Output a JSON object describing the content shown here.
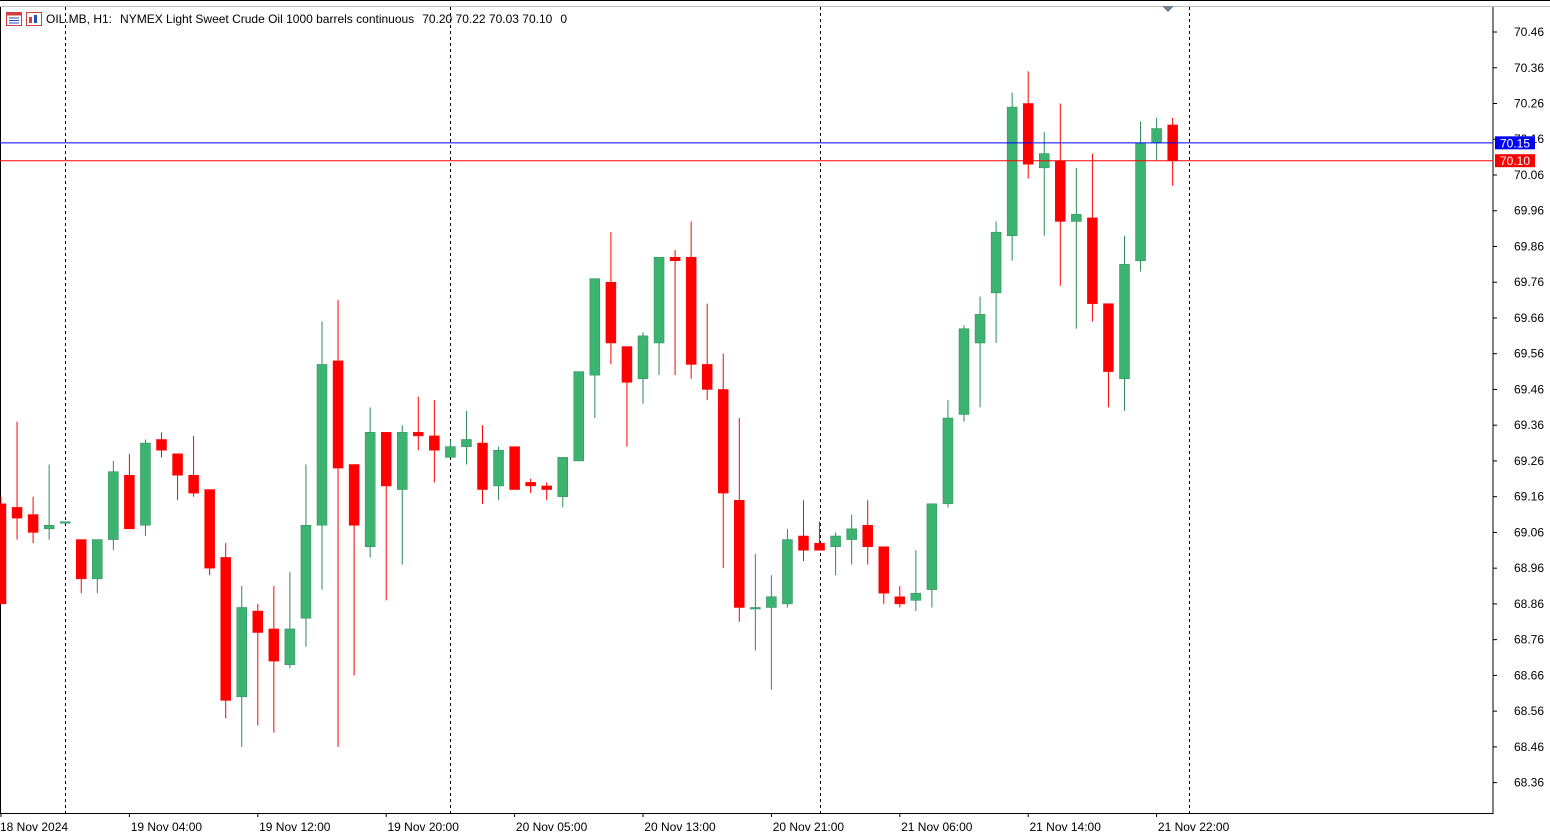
{
  "header": {
    "symbol": "OIL.MB, H1:",
    "description": "NYMEX Light Sweet Crude Oil 1000 barrels continuous",
    "ohlc": "70.20 70.22 70.03 70.10",
    "volume": "0",
    "icons": [
      "chart-list-icon",
      "chart-bars-icon"
    ]
  },
  "colors": {
    "bull": "#3cb371",
    "bear": "#ff0000",
    "ask_line": "#0000ff",
    "bid_line": "#ff0000",
    "grid": "#000000",
    "background": "#ffffff"
  },
  "price_labels": {
    "ask": "70.15",
    "bid": "70.10"
  },
  "chart_data": {
    "type": "candlestick",
    "title": "",
    "xlabel": "",
    "ylabel": "",
    "ylim": [
      68.275,
      70.53
    ],
    "y_ticks": [
      "70.46",
      "70.36",
      "70.26",
      "70.16",
      "70.06",
      "69.96",
      "69.86",
      "69.76",
      "69.66",
      "69.56",
      "69.46",
      "69.36",
      "69.26",
      "69.16",
      "69.06",
      "68.96",
      "68.86",
      "68.76",
      "68.66",
      "68.56",
      "68.46",
      "68.36"
    ],
    "x_ticks": [
      "18 Nov 2024",
      "19 Nov 04:00",
      "19 Nov 12:00",
      "19 Nov 20:00",
      "20 Nov 05:00",
      "20 Nov 13:00",
      "20 Nov 21:00",
      "21 Nov 06:00",
      "21 Nov 14:00",
      "21 Nov 22:00"
    ],
    "x_tick_bar_index": [
      0,
      8,
      16,
      24,
      32,
      40,
      48,
      56,
      64,
      72
    ],
    "day_separator_bar_index": [
      4,
      28,
      51,
      74
    ],
    "grid": false,
    "ask": 70.15,
    "bid": 70.1,
    "candles": [
      {
        "o": 69.14,
        "h": 69.16,
        "l": 68.86,
        "c": 68.86
      },
      {
        "o": 69.13,
        "h": 69.37,
        "l": 69.04,
        "c": 69.1
      },
      {
        "o": 69.11,
        "h": 69.16,
        "l": 69.03,
        "c": 69.06
      },
      {
        "o": 69.07,
        "h": 69.25,
        "l": 69.04,
        "c": 69.08
      },
      {
        "o": 69.09,
        "h": 69.09,
        "l": 69.09,
        "c": 69.09
      },
      {
        "o": 69.04,
        "h": 69.04,
        "l": 68.89,
        "c": 68.93
      },
      {
        "o": 68.93,
        "h": 69.04,
        "l": 68.89,
        "c": 69.04
      },
      {
        "o": 69.04,
        "h": 69.26,
        "l": 69.01,
        "c": 69.23
      },
      {
        "o": 69.22,
        "h": 69.28,
        "l": 69.07,
        "c": 69.07
      },
      {
        "o": 69.08,
        "h": 69.32,
        "l": 69.05,
        "c": 69.31
      },
      {
        "o": 69.32,
        "h": 69.34,
        "l": 69.27,
        "c": 69.29
      },
      {
        "o": 69.28,
        "h": 69.28,
        "l": 69.15,
        "c": 69.22
      },
      {
        "o": 69.22,
        "h": 69.33,
        "l": 69.16,
        "c": 69.17
      },
      {
        "o": 69.18,
        "h": 69.18,
        "l": 68.94,
        "c": 68.96
      },
      {
        "o": 68.99,
        "h": 69.03,
        "l": 68.54,
        "c": 68.59
      },
      {
        "o": 68.6,
        "h": 68.91,
        "l": 68.46,
        "c": 68.85
      },
      {
        "o": 68.84,
        "h": 68.86,
        "l": 68.52,
        "c": 68.78
      },
      {
        "o": 68.79,
        "h": 68.91,
        "l": 68.5,
        "c": 68.7
      },
      {
        "o": 68.69,
        "h": 68.95,
        "l": 68.68,
        "c": 68.79
      },
      {
        "o": 68.82,
        "h": 69.25,
        "l": 68.74,
        "c": 69.08
      },
      {
        "o": 69.08,
        "h": 69.65,
        "l": 68.9,
        "c": 69.53
      },
      {
        "o": 69.54,
        "h": 69.71,
        "l": 68.46,
        "c": 69.24
      },
      {
        "o": 69.25,
        "h": 69.25,
        "l": 68.66,
        "c": 69.08
      },
      {
        "o": 69.02,
        "h": 69.41,
        "l": 68.99,
        "c": 69.34
      },
      {
        "o": 69.34,
        "h": 69.34,
        "l": 68.87,
        "c": 69.19
      },
      {
        "o": 69.18,
        "h": 69.36,
        "l": 68.97,
        "c": 69.34
      },
      {
        "o": 69.34,
        "h": 69.44,
        "l": 69.29,
        "c": 69.33
      },
      {
        "o": 69.33,
        "h": 69.43,
        "l": 69.2,
        "c": 69.29
      },
      {
        "o": 69.27,
        "h": 69.32,
        "l": 69.27,
        "c": 69.3
      },
      {
        "o": 69.3,
        "h": 69.4,
        "l": 69.25,
        "c": 69.32
      },
      {
        "o": 69.31,
        "h": 69.36,
        "l": 69.14,
        "c": 69.18
      },
      {
        "o": 69.19,
        "h": 69.3,
        "l": 69.15,
        "c": 69.29
      },
      {
        "o": 69.3,
        "h": 69.3,
        "l": 69.18,
        "c": 69.18
      },
      {
        "o": 69.2,
        "h": 69.21,
        "l": 69.17,
        "c": 69.19
      },
      {
        "o": 69.19,
        "h": 69.2,
        "l": 69.15,
        "c": 69.18
      },
      {
        "o": 69.16,
        "h": 69.26,
        "l": 69.13,
        "c": 69.27
      },
      {
        "o": 69.26,
        "h": 69.51,
        "l": 69.26,
        "c": 69.51
      },
      {
        "o": 69.5,
        "h": 69.77,
        "l": 69.38,
        "c": 69.77
      },
      {
        "o": 69.76,
        "h": 69.9,
        "l": 69.53,
        "c": 69.59
      },
      {
        "o": 69.58,
        "h": 69.58,
        "l": 69.3,
        "c": 69.48
      },
      {
        "o": 69.49,
        "h": 69.62,
        "l": 69.42,
        "c": 69.61
      },
      {
        "o": 69.59,
        "h": 69.83,
        "l": 69.5,
        "c": 69.83
      },
      {
        "o": 69.83,
        "h": 69.85,
        "l": 69.5,
        "c": 69.82
      },
      {
        "o": 69.83,
        "h": 69.93,
        "l": 69.49,
        "c": 69.53
      },
      {
        "o": 69.53,
        "h": 69.7,
        "l": 69.43,
        "c": 69.46
      },
      {
        "o": 69.46,
        "h": 69.56,
        "l": 68.96,
        "c": 69.17
      },
      {
        "o": 69.15,
        "h": 69.38,
        "l": 68.81,
        "c": 68.85
      },
      {
        "o": 68.85,
        "h": 69.0,
        "l": 68.73,
        "c": 68.85
      },
      {
        "o": 68.85,
        "h": 68.94,
        "l": 68.62,
        "c": 68.88
      },
      {
        "o": 68.86,
        "h": 69.07,
        "l": 68.85,
        "c": 69.04
      },
      {
        "o": 69.05,
        "h": 69.15,
        "l": 68.98,
        "c": 69.01
      },
      {
        "o": 69.03,
        "h": 69.09,
        "l": 69.01,
        "c": 69.01
      },
      {
        "o": 69.02,
        "h": 69.06,
        "l": 68.94,
        "c": 69.05
      },
      {
        "o": 69.04,
        "h": 69.11,
        "l": 68.97,
        "c": 69.07
      },
      {
        "o": 69.08,
        "h": 69.15,
        "l": 68.97,
        "c": 69.02
      },
      {
        "o": 69.02,
        "h": 69.02,
        "l": 68.86,
        "c": 68.89
      },
      {
        "o": 68.88,
        "h": 68.91,
        "l": 68.85,
        "c": 68.86
      },
      {
        "o": 68.87,
        "h": 69.01,
        "l": 68.84,
        "c": 68.89
      },
      {
        "o": 68.9,
        "h": 69.14,
        "l": 68.85,
        "c": 69.14
      },
      {
        "o": 69.14,
        "h": 69.43,
        "l": 69.13,
        "c": 69.38
      },
      {
        "o": 69.39,
        "h": 69.64,
        "l": 69.37,
        "c": 69.63
      },
      {
        "o": 69.59,
        "h": 69.72,
        "l": 69.41,
        "c": 69.67
      },
      {
        "o": 69.73,
        "h": 69.93,
        "l": 69.59,
        "c": 69.9
      },
      {
        "o": 69.89,
        "h": 70.29,
        "l": 69.82,
        "c": 70.25
      },
      {
        "o": 70.26,
        "h": 70.35,
        "l": 70.05,
        "c": 70.09
      },
      {
        "o": 70.08,
        "h": 70.18,
        "l": 69.89,
        "c": 70.12
      },
      {
        "o": 70.1,
        "h": 70.26,
        "l": 69.75,
        "c": 69.93
      },
      {
        "o": 69.93,
        "h": 70.08,
        "l": 69.63,
        "c": 69.95
      },
      {
        "o": 69.94,
        "h": 70.12,
        "l": 69.65,
        "c": 69.7
      },
      {
        "o": 69.7,
        "h": 69.7,
        "l": 69.41,
        "c": 69.51
      },
      {
        "o": 69.49,
        "h": 69.89,
        "l": 69.4,
        "c": 69.81
      },
      {
        "o": 69.82,
        "h": 70.21,
        "l": 69.79,
        "c": 70.15
      },
      {
        "o": 70.15,
        "h": 70.22,
        "l": 70.1,
        "c": 70.19
      },
      {
        "o": 70.2,
        "h": 70.22,
        "l": 70.03,
        "c": 70.1
      }
    ]
  }
}
